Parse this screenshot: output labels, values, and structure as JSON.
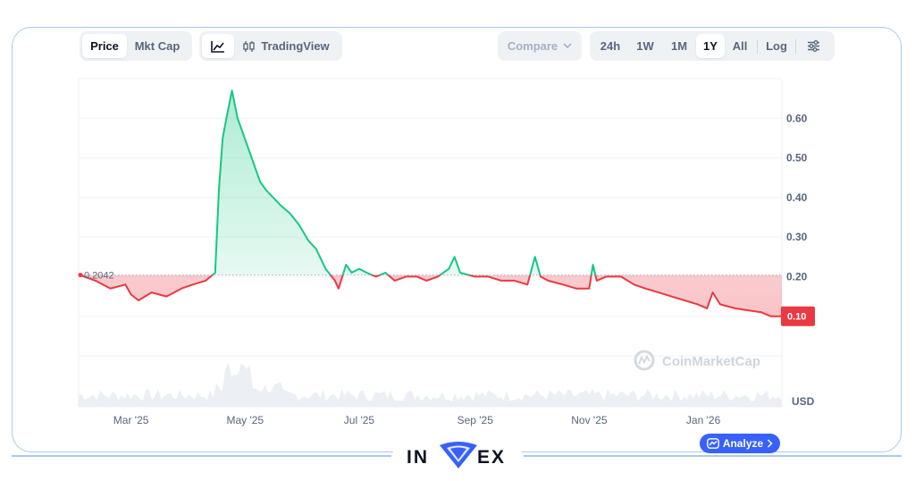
{
  "toolbar": {
    "price_label": "Price",
    "mktcap_label": "Mkt Cap",
    "tradingview_label": "TradingView",
    "compare_label": "Compare",
    "ranges": [
      "24h",
      "1W",
      "1M",
      "1Y",
      "All"
    ],
    "active_range": "1Y",
    "log_label": "Log"
  },
  "watermark": "CoinMarketCap",
  "currency_label": "USD",
  "analyze_label": "Analyze",
  "brand": {
    "left": "IN",
    "right": "EX"
  },
  "colors": {
    "up": "#16c784",
    "down": "#ea3943",
    "accent": "#3861fb",
    "brand": "#3861fb"
  },
  "chart_data": {
    "type": "area",
    "reference_value": 0.2042,
    "reference_label": "0.2042",
    "current_value": 0.1,
    "current_label": "0.10",
    "ylim": [
      0,
      0.7
    ],
    "yticks": [
      0.1,
      0.2,
      0.3,
      0.4,
      0.5,
      0.6
    ],
    "ytick_labels": [
      "0.10",
      "0.20",
      "0.30",
      "0.40",
      "0.50",
      "0.60"
    ],
    "xtick_labels": [
      "Mar '25",
      "May '25",
      "Jul '25",
      "Sep '25",
      "Nov '25",
      "Jan '26"
    ],
    "xticks": [
      "2025-03-01",
      "2025-05-01",
      "2025-07-01",
      "2025-09-01",
      "2025-11-01",
      "2026-01-01"
    ],
    "xlim": [
      "2025-02-01",
      "2026-02-12"
    ],
    "series": [
      {
        "dates": [
          "2025-02-01",
          "2025-02-10",
          "2025-02-18",
          "2025-02-26",
          "2025-03-01",
          "2025-03-05",
          "2025-03-12",
          "2025-03-20",
          "2025-03-28",
          "2025-04-03",
          "2025-04-10",
          "2025-04-15",
          "2025-04-17",
          "2025-04-19",
          "2025-04-21",
          "2025-04-24",
          "2025-04-27",
          "2025-04-30",
          "2025-05-03",
          "2025-05-06",
          "2025-05-09",
          "2025-05-12",
          "2025-05-16",
          "2025-05-20",
          "2025-05-25",
          "2025-05-30",
          "2025-06-04",
          "2025-06-08",
          "2025-06-13",
          "2025-06-18",
          "2025-06-20",
          "2025-06-24",
          "2025-06-27",
          "2025-07-01",
          "2025-07-05",
          "2025-07-10",
          "2025-07-15",
          "2025-07-20",
          "2025-07-26",
          "2025-08-01",
          "2025-08-06",
          "2025-08-12",
          "2025-08-18",
          "2025-08-21",
          "2025-08-24",
          "2025-09-01",
          "2025-09-08",
          "2025-09-15",
          "2025-09-22",
          "2025-09-29",
          "2025-10-03",
          "2025-10-06",
          "2025-10-10",
          "2025-10-18",
          "2025-10-25",
          "2025-11-01",
          "2025-11-03",
          "2025-11-05",
          "2025-11-10",
          "2025-11-18",
          "2025-11-25",
          "2025-12-01",
          "2025-12-08",
          "2025-12-15",
          "2025-12-22",
          "2025-12-29",
          "2026-01-03",
          "2026-01-06",
          "2026-01-10",
          "2026-01-18",
          "2026-01-25",
          "2026-02-01",
          "2026-02-06",
          "2026-02-12"
        ],
        "values": [
          0.205,
          0.19,
          0.17,
          0.18,
          0.155,
          0.14,
          0.16,
          0.15,
          0.17,
          0.18,
          0.19,
          0.21,
          0.42,
          0.55,
          0.6,
          0.67,
          0.6,
          0.56,
          0.52,
          0.48,
          0.44,
          0.42,
          0.4,
          0.38,
          0.36,
          0.33,
          0.29,
          0.27,
          0.22,
          0.19,
          0.17,
          0.23,
          0.21,
          0.22,
          0.21,
          0.2,
          0.21,
          0.19,
          0.2,
          0.2,
          0.19,
          0.2,
          0.22,
          0.25,
          0.21,
          0.2,
          0.2,
          0.19,
          0.19,
          0.18,
          0.25,
          0.2,
          0.19,
          0.18,
          0.17,
          0.17,
          0.23,
          0.19,
          0.2,
          0.2,
          0.18,
          0.17,
          0.16,
          0.15,
          0.14,
          0.13,
          0.12,
          0.16,
          0.13,
          0.12,
          0.115,
          0.11,
          0.1,
          0.1
        ]
      }
    ]
  }
}
